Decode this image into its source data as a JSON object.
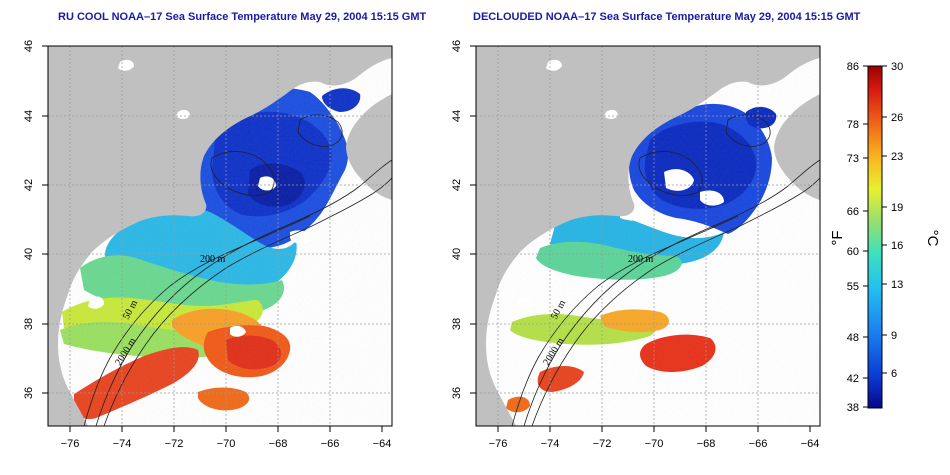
{
  "panels": [
    {
      "title": "RU COOL NOAA–17 Sea Surface Temperature May 29, 2004 15:15 GMT",
      "x_ticks": [
        "−76",
        "−74",
        "−72",
        "−70",
        "−68",
        "−66",
        "−64"
      ],
      "y_ticks": [
        "46",
        "44",
        "42",
        "40",
        "38",
        "36"
      ],
      "contour_labels": [
        "200 m",
        "50 m",
        "2000 m"
      ]
    },
    {
      "title": "DECLOUDED NOAA–17 Sea Surface Temperature May 29, 2004 15:15 GMT",
      "x_ticks": [
        "−76",
        "−74",
        "−72",
        "−70",
        "−68",
        "−66",
        "−64"
      ],
      "y_ticks": [
        "46",
        "44",
        "42",
        "40",
        "38",
        "36"
      ],
      "contour_labels": [
        "200 m",
        "50 m",
        "2000 m"
      ]
    }
  ],
  "colorbar": {
    "fahrenheit_ticks": [
      "86",
      "78",
      "73",
      "66",
      "60",
      "55",
      "48",
      "42",
      "38"
    ],
    "celsius_ticks": [
      "30",
      "26",
      "23",
      "19",
      "16",
      "13",
      "9",
      "6"
    ],
    "fahrenheit_unit": "°F",
    "celsius_unit": "°C",
    "colors": [
      "#08088a",
      "#0a3fd6",
      "#1a7ff0",
      "#22c0f0",
      "#3de0c0",
      "#9ae06a",
      "#e8f030",
      "#f8b820",
      "#f06818",
      "#d81a10",
      "#9a0000"
    ]
  },
  "colors": {
    "land": "#c0c0c0",
    "grid": "#9a9a9a",
    "frame": "#000000"
  }
}
